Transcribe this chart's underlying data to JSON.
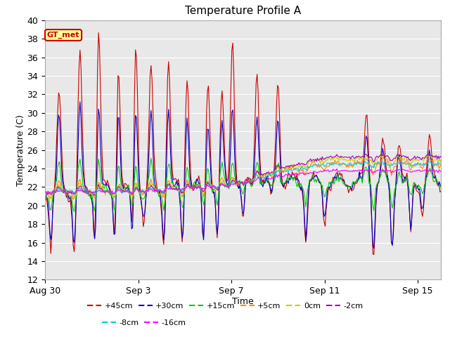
{
  "title": "Temperature Profile A",
  "xlabel": "Time",
  "ylabel": "Temperature (C)",
  "ylim": [
    12,
    40
  ],
  "yticks": [
    12,
    14,
    16,
    18,
    20,
    22,
    24,
    26,
    28,
    30,
    32,
    34,
    36,
    38,
    40
  ],
  "plot_bg_color": "#e8e8e8",
  "series": [
    {
      "label": "+45cm",
      "color": "#cc0000"
    },
    {
      "label": "+30cm",
      "color": "#0000cc"
    },
    {
      "label": "+15cm",
      "color": "#00cc00"
    },
    {
      "label": "+5cm",
      "color": "#ff8800"
    },
    {
      "label": "0cm",
      "color": "#cccc00"
    },
    {
      "label": "-2cm",
      "color": "#aa00aa"
    },
    {
      "label": "-8cm",
      "color": "#00cccc"
    },
    {
      "label": "-16cm",
      "color": "#ff00ff"
    }
  ],
  "annotation_label": "GT_met",
  "annotation_box_color": "#ffff99",
  "annotation_border_color": "#cc0000",
  "annotation_text_color": "#cc0000",
  "x_tick_labels": [
    "Aug 30",
    "Sep 3",
    "Sep 7",
    "Sep 11",
    "Sep 15"
  ],
  "x_tick_positions": [
    0,
    4,
    8,
    12,
    16
  ],
  "total_days": 17,
  "num_points": 408,
  "grid_color": "#ffffff",
  "grid_linewidth": 0.8,
  "line_width": 0.8
}
